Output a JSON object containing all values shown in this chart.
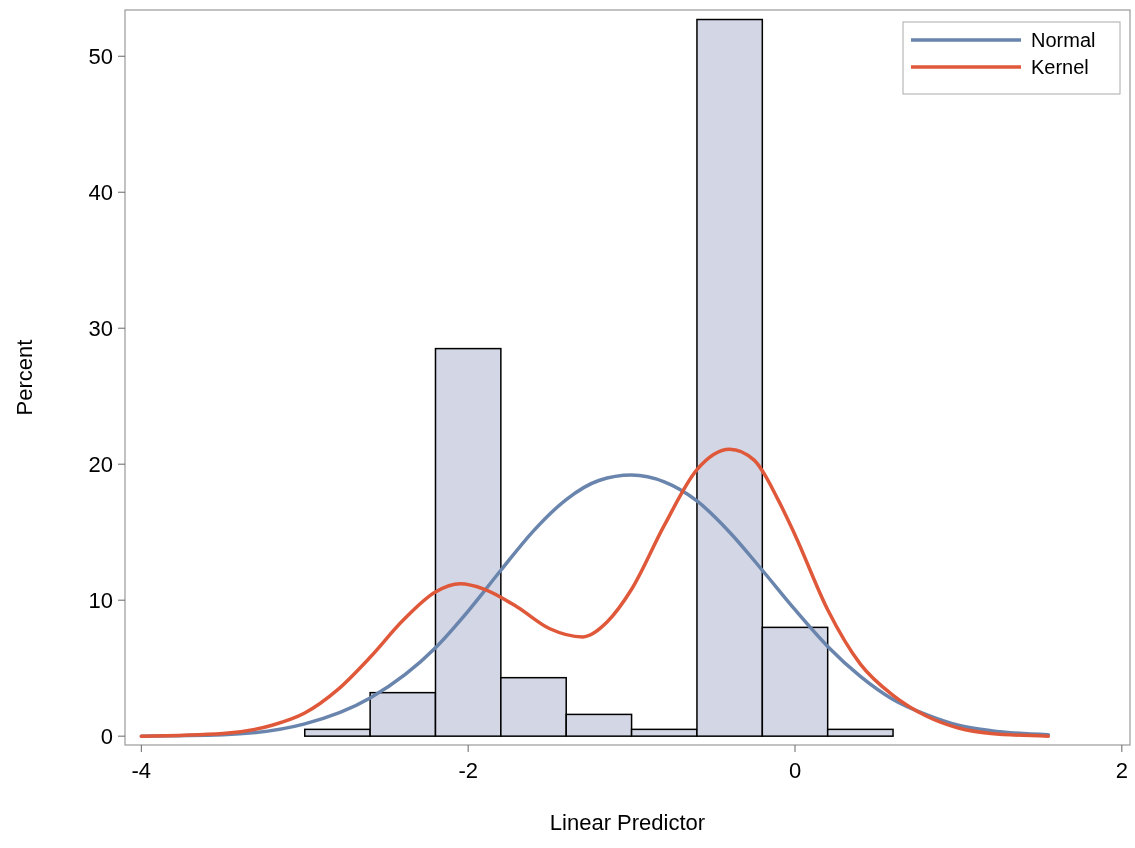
{
  "chart_data": {
    "type": "histogram",
    "xlabel": "Linear Predictor",
    "ylabel": "Percent",
    "bins": [
      -3.0,
      -2.6,
      -2.2,
      -1.8,
      -1.4,
      -1.0,
      -0.6,
      -0.2,
      0.2,
      0.6
    ],
    "values": [
      0.5,
      3.2,
      28.5,
      4.3,
      1.6,
      0.5,
      52.7,
      8.0,
      0.5
    ],
    "color": "#d3d6e4",
    "series": [
      {
        "name": "Normal",
        "type": "line",
        "color": "#6a85ad",
        "x": [
          -4,
          -3.5,
          -3,
          -2.6,
          -2.2,
          -2,
          -1.8,
          -1.6,
          -1.4,
          -1.2,
          -1,
          -0.8,
          -0.6,
          -0.4,
          -0.2,
          0,
          0.2,
          0.4,
          0.6,
          0.8,
          1,
          1.2,
          1.55
        ],
        "values": [
          0,
          0.1,
          0.9,
          2.8,
          6.5,
          9.2,
          12.2,
          15.1,
          17.4,
          18.8,
          19.2,
          18.7,
          17.3,
          15.0,
          12.2,
          9.3,
          6.6,
          4.4,
          2.7,
          1.6,
          0.8,
          0.4,
          0.1
        ]
      },
      {
        "name": "Kernel",
        "type": "line",
        "color": "#e0583a",
        "x": [
          -4,
          -3.5,
          -3.2,
          -3,
          -2.8,
          -2.6,
          -2.4,
          -2.2,
          -2.05,
          -1.9,
          -1.7,
          -1.5,
          -1.3,
          -1.15,
          -1,
          -0.8,
          -0.6,
          -0.4,
          -0.25,
          -0.1,
          0,
          0.2,
          0.4,
          0.6,
          0.8,
          1,
          1.2,
          1.55
        ],
        "values": [
          0,
          0.2,
          0.8,
          1.7,
          3.4,
          5.8,
          8.5,
          10.6,
          11.2,
          10.8,
          9.5,
          7.9,
          7.3,
          8.4,
          10.8,
          15.5,
          19.6,
          21.1,
          20.3,
          17.3,
          14.8,
          9.3,
          5.3,
          3.0,
          1.5,
          0.6,
          0.2,
          0
        ]
      }
    ],
    "xlim": [
      -4.1,
      2.05
    ],
    "ylim": [
      -0.65,
      53.4
    ],
    "xticks": [
      -4,
      -2,
      0,
      2
    ],
    "yticks": [
      0,
      10,
      20,
      30,
      40,
      50
    ],
    "legend": "top right",
    "grid": false
  }
}
